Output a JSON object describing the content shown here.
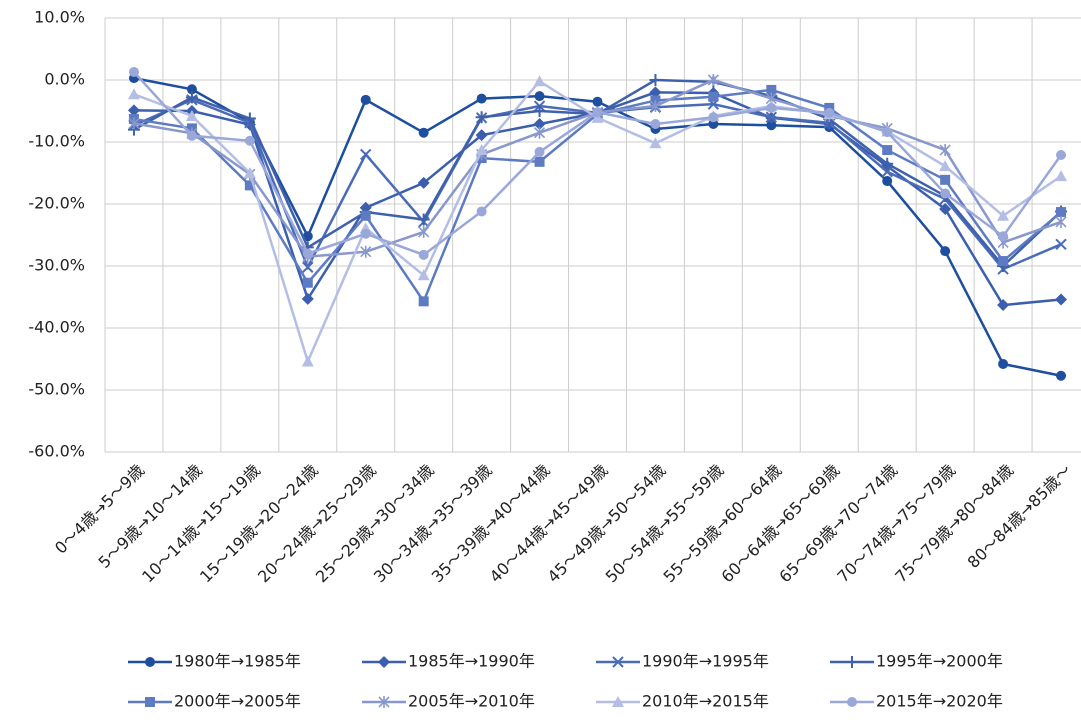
{
  "chart_data": {
    "type": "line",
    "categories": [
      "0～4歳→5～9歳",
      "5～9歳→10～14歳",
      "10～14歳→15～19歳",
      "15～19歳→20～24歳",
      "20～24歳→25～29歳",
      "25～29歳→30～34歳",
      "30～34歳→35～39歳",
      "35～39歳→40～44歳",
      "40～44歳→45～49歳",
      "45～49歳→50～54歳",
      "50～54歳→55～59歳",
      "55～59歳→60～64歳",
      "60～64歳→65～69歳",
      "65～69歳→70～74歳",
      "70～74歳→75～79歳",
      "75～79歳→80～84歳",
      "80～84歳→85歳～"
    ],
    "series": [
      {
        "name": "1980年→1985年",
        "color": "#1d4f9e",
        "marker": "circle",
        "values": [
          0.3,
          -1.5,
          -6.8,
          -25.2,
          -3.2,
          -8.5,
          -3.0,
          -2.6,
          -3.5,
          -7.9,
          -7.1,
          -7.3,
          -7.6,
          -16.3,
          -27.6,
          -45.8,
          -47.7
        ]
      },
      {
        "name": "1985年→1990年",
        "color": "#3b5fae",
        "marker": "diamond",
        "values": [
          -4.9,
          -5.0,
          -7.2,
          -35.3,
          -20.6,
          -16.6,
          -8.9,
          -7.1,
          -5.3,
          -2.0,
          -2.1,
          -6.1,
          -7.1,
          -13.9,
          -20.8,
          -36.3,
          -35.4
        ]
      },
      {
        "name": "1990年→1995年",
        "color": "#4a6cb8",
        "marker": "x",
        "values": [
          -7.3,
          -3.2,
          -6.9,
          -30.2,
          -12.0,
          -22.9,
          -6.1,
          -4.2,
          -5.3,
          -4.4,
          -3.9,
          -6.0,
          -6.9,
          -14.8,
          -19.2,
          -30.5,
          -26.5
        ]
      },
      {
        "name": "1995年→2000年",
        "color": "#3f60aa",
        "marker": "plus",
        "values": [
          -8.0,
          -2.8,
          -6.2,
          -27.0,
          -21.3,
          -22.5,
          -6.0,
          -5.0,
          -5.5,
          0.0,
          -0.3,
          -2.6,
          -6.3,
          -13.5,
          -18.7,
          -30.0,
          -21.2
        ]
      },
      {
        "name": "2000年→2005年",
        "color": "#5d7bc2",
        "marker": "square",
        "values": [
          -6.3,
          -7.8,
          -17.0,
          -32.7,
          -21.9,
          -35.7,
          -12.6,
          -13.2,
          -5.5,
          -3.3,
          -2.7,
          -1.6,
          -4.5,
          -11.3,
          -16.1,
          -29.2,
          -21.3
        ]
      },
      {
        "name": "2005年→2010年",
        "color": "#8897cc",
        "marker": "asterisk",
        "values": [
          -7.0,
          -8.6,
          -15.2,
          -28.5,
          -27.7,
          -24.5,
          -12.0,
          -8.5,
          -5.2,
          -4.2,
          0.0,
          -3.0,
          -5.8,
          -7.8,
          -11.3,
          -26.2,
          -22.9
        ]
      },
      {
        "name": "2010年→2015年",
        "color": "#b4bee4",
        "marker": "triangle",
        "values": [
          -2.3,
          -5.8,
          -15.0,
          -45.4,
          -23.9,
          -31.5,
          -11.3,
          -0.2,
          -6.1,
          -10.2,
          -5.8,
          -4.2,
          -5.5,
          -8.3,
          -13.9,
          -21.9,
          -15.5
        ]
      },
      {
        "name": "2015年→2020年",
        "color": "#99a7d9",
        "marker": "circle",
        "values": [
          1.3,
          -9.0,
          -9.8,
          -28.0,
          -24.8,
          -28.2,
          -21.2,
          -11.6,
          -5.2,
          -7.1,
          -6.0,
          -4.5,
          -5.3,
          -8.4,
          -18.3,
          -25.2,
          -12.1
        ]
      }
    ],
    "ylim": [
      -60,
      10
    ],
    "yticks": [
      {
        "value": -60,
        "label": "-60.0%"
      },
      {
        "value": -50,
        "label": "-50.0%"
      },
      {
        "value": -40,
        "label": "-40.0%"
      },
      {
        "value": -30,
        "label": "-30.0%"
      },
      {
        "value": -20,
        "label": "-20.0%"
      },
      {
        "value": -10,
        "label": "-10.0%"
      },
      {
        "value": 0,
        "label": "0.0%"
      },
      {
        "value": 10,
        "label": "10.0%"
      }
    ],
    "grid": true,
    "legend": "bottom"
  }
}
